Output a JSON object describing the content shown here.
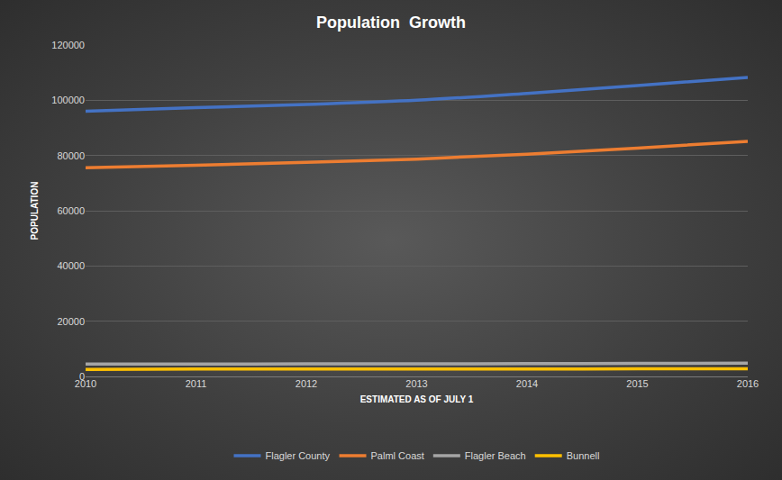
{
  "chart_data": {
    "type": "line",
    "title": "Population  Growth",
    "x_label": "ESTIMATED AS OF JULY 1",
    "y_label": "POPULATION",
    "categories": [
      "2010",
      "2011",
      "2012",
      "2013",
      "2014",
      "2015",
      "2016"
    ],
    "series": [
      {
        "name": "Flagler County",
        "color": "#4472c4",
        "values": [
          96000,
          97300,
          98500,
          100000,
          102500,
          105300,
          108300
        ]
      },
      {
        "name": "Palml Coast",
        "color": "#ed7d31",
        "values": [
          75600,
          76500,
          77500,
          78700,
          80500,
          82700,
          85100
        ]
      },
      {
        "name": "Flagler Beach",
        "color": "#a5a5a5",
        "values": [
          4500,
          4500,
          4550,
          4580,
          4620,
          4700,
          4800
        ]
      },
      {
        "name": "Bunnell",
        "color": "#ffc000",
        "values": [
          2500,
          2650,
          2700,
          2700,
          2700,
          2750,
          2800
        ]
      }
    ],
    "ylim": [
      0,
      120000
    ],
    "yticks": [
      0,
      20000,
      40000,
      60000,
      80000,
      100000,
      120000
    ],
    "grid": true,
    "legend": "bottom",
    "line_style": "smooth"
  }
}
